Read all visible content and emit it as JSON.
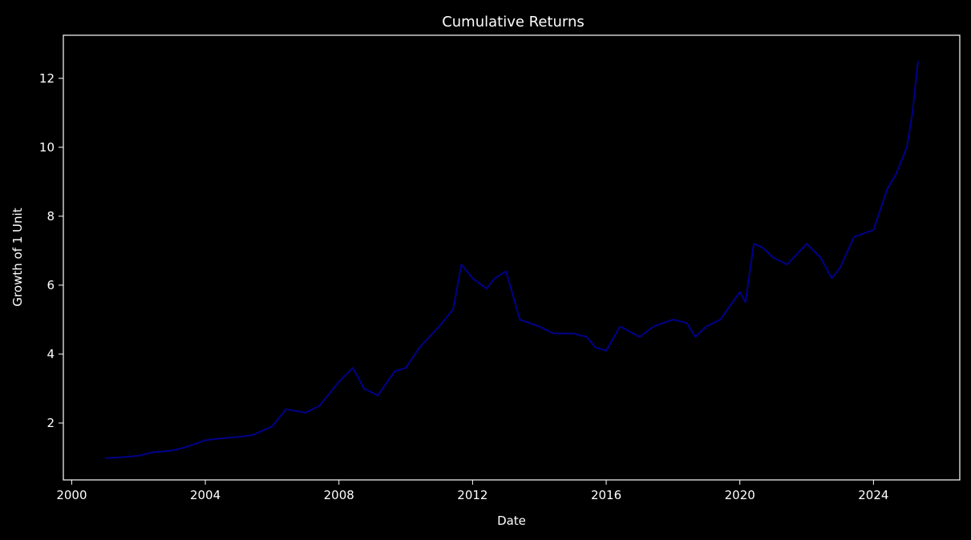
{
  "chart_data": {
    "type": "line",
    "title": "Cumulative Returns",
    "xlabel": "Date",
    "ylabel": "Growth of 1 Unit",
    "x_ticks": [
      "2000",
      "2004",
      "2008",
      "2012",
      "2016",
      "2020",
      "2024"
    ],
    "y_ticks": [
      2,
      4,
      6,
      8,
      10,
      12
    ],
    "xlim": [
      "1999-10-01",
      "2026-08-01"
    ],
    "ylim": [
      0.35,
      13.25
    ],
    "grid": false,
    "legend": "none",
    "series": [
      {
        "color": "#00008b",
        "x": [
          "2001-01",
          "2001-06",
          "2002-01",
          "2002-06",
          "2003-01",
          "2003-06",
          "2004-01",
          "2004-06",
          "2005-01",
          "2005-06",
          "2006-01",
          "2006-06",
          "2007-01",
          "2007-06",
          "2008-01",
          "2008-06",
          "2008-10",
          "2009-03",
          "2009-09",
          "2010-01",
          "2010-06",
          "2011-01",
          "2011-06",
          "2011-09",
          "2012-01",
          "2012-06",
          "2012-09",
          "2013-01",
          "2013-06",
          "2014-01",
          "2014-06",
          "2015-01",
          "2015-06",
          "2015-09",
          "2016-01",
          "2016-06",
          "2017-01",
          "2017-06",
          "2018-01",
          "2018-06",
          "2018-09",
          "2019-01",
          "2019-06",
          "2020-01",
          "2020-03",
          "2020-06",
          "2020-09",
          "2021-01",
          "2021-06",
          "2022-01",
          "2022-06",
          "2022-10",
          "2023-01",
          "2023-06",
          "2024-01",
          "2024-06",
          "2024-09",
          "2025-01",
          "2025-03",
          "2025-05"
        ],
        "y": [
          0.98,
          1.0,
          1.05,
          1.15,
          1.2,
          1.3,
          1.5,
          1.55,
          1.6,
          1.65,
          1.9,
          2.4,
          2.3,
          2.5,
          3.2,
          3.6,
          3.0,
          2.8,
          3.5,
          3.6,
          4.2,
          4.8,
          5.3,
          6.6,
          6.2,
          5.9,
          6.2,
          6.4,
          5.0,
          4.8,
          4.6,
          4.6,
          4.5,
          4.2,
          4.1,
          4.8,
          4.5,
          4.8,
          5.0,
          4.9,
          4.5,
          4.8,
          5.0,
          5.8,
          5.5,
          7.2,
          7.1,
          6.8,
          6.6,
          7.2,
          6.8,
          6.2,
          6.5,
          7.4,
          7.6,
          8.8,
          9.2,
          10.0,
          11.0,
          12.5
        ]
      }
    ]
  }
}
